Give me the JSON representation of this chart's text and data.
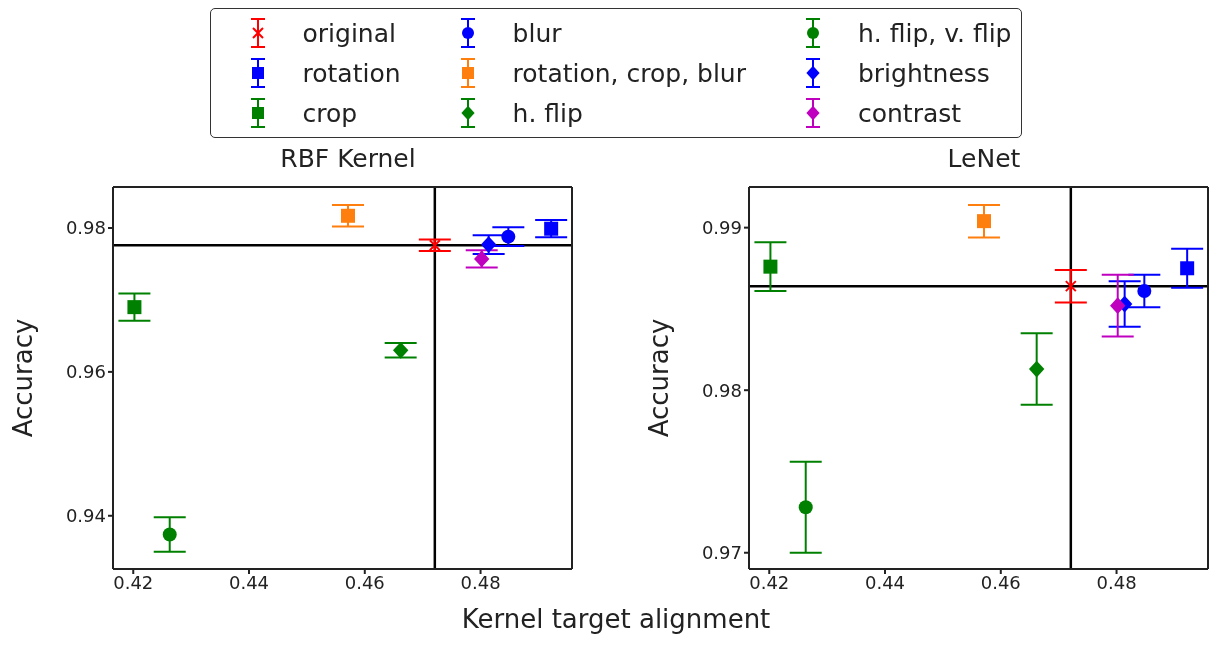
{
  "chart_data": [
    {
      "type": "scatter",
      "title": "RBF Kernel",
      "xlabel": "Kernel target alignment",
      "ylabel": "Accuracy",
      "legend": "top",
      "xlim": [
        0.4165,
        0.4958
      ],
      "xticks": [
        0.42,
        0.44,
        0.46,
        0.48
      ],
      "ylim": [
        0.9326,
        0.9857
      ],
      "yticks": [
        0.94,
        0.96,
        0.98
      ],
      "ref_lines": [
        {
          "axis": "x",
          "value": 0.4721,
          "color": "#000000"
        },
        {
          "axis": "y",
          "value": 0.9776,
          "color": "#000000"
        }
      ],
      "series": [
        {
          "name": "original",
          "color": "#ff0000",
          "marker": "cross",
          "x": [
            0.4721
          ],
          "values": [
            0.9776
          ],
          "errors": [
            0.0008
          ]
        },
        {
          "name": "rotation",
          "color": "#0000ff",
          "marker": "square",
          "x": [
            0.4922
          ],
          "values": [
            0.9799
          ],
          "errors": [
            0.0012
          ]
        },
        {
          "name": "crop",
          "color": "#008000",
          "marker": "square",
          "x": [
            0.4202
          ],
          "values": [
            0.969
          ],
          "errors": [
            0.0019
          ]
        },
        {
          "name": "blur",
          "color": "#0000ff",
          "marker": "circle",
          "x": [
            0.4848
          ],
          "values": [
            0.9788
          ],
          "errors": [
            0.0013
          ]
        },
        {
          "name": "rotation, crop, blur",
          "color": "#ff7f0e",
          "marker": "square",
          "x": [
            0.4571
          ],
          "values": [
            0.9817
          ],
          "errors": [
            0.0015
          ]
        },
        {
          "name": "h. flip",
          "color": "#008000",
          "marker": "diamond",
          "x": [
            0.4662
          ],
          "values": [
            0.963
          ],
          "errors": [
            0.001
          ]
        },
        {
          "name": "h. flip, v. flip",
          "color": "#008000",
          "marker": "circle",
          "x": [
            0.4263
          ],
          "values": [
            0.9374
          ],
          "errors": [
            0.0024
          ]
        },
        {
          "name": "brightness",
          "color": "#0000ff",
          "marker": "diamond",
          "x": [
            0.4814
          ],
          "values": [
            0.9777
          ],
          "errors": [
            0.0013
          ]
        },
        {
          "name": "contrast",
          "color": "#bf00bf",
          "marker": "diamond",
          "x": [
            0.4802
          ],
          "values": [
            0.9757
          ],
          "errors": [
            0.0012
          ]
        }
      ]
    },
    {
      "type": "scatter",
      "title": "LeNet",
      "ylabel": "Accuracy",
      "xlim": [
        0.4165,
        0.4958
      ],
      "xticks": [
        0.42,
        0.44,
        0.46,
        0.48
      ],
      "ylim": [
        0.969,
        0.9925
      ],
      "yticks": [
        0.97,
        0.98,
        0.99
      ],
      "ref_lines": [
        {
          "axis": "x",
          "value": 0.4721,
          "color": "#000000"
        },
        {
          "axis": "y",
          "value": 0.9864,
          "color": "#000000"
        }
      ],
      "series": [
        {
          "color": "#ff0000",
          "marker": "cross",
          "x": [
            0.4721
          ],
          "values": [
            0.9864
          ],
          "errors": [
            0.001
          ]
        },
        {
          "color": "#0000ff",
          "marker": "square",
          "x": [
            0.4922
          ],
          "values": [
            0.9875
          ],
          "errors": [
            0.0012
          ]
        },
        {
          "color": "#008000",
          "marker": "square",
          "x": [
            0.4202
          ],
          "values": [
            0.9876
          ],
          "errors": [
            0.0015
          ]
        },
        {
          "color": "#0000ff",
          "marker": "circle",
          "x": [
            0.4848
          ],
          "values": [
            0.9861
          ],
          "errors": [
            0.001
          ]
        },
        {
          "color": "#ff7f0e",
          "marker": "square",
          "x": [
            0.4571
          ],
          "values": [
            0.9904
          ],
          "errors": [
            0.001
          ]
        },
        {
          "color": "#008000",
          "marker": "diamond",
          "x": [
            0.4662
          ],
          "values": [
            0.9813
          ],
          "errors": [
            0.0022
          ]
        },
        {
          "color": "#008000",
          "marker": "circle",
          "x": [
            0.4263
          ],
          "values": [
            0.9728
          ],
          "errors": [
            0.0028
          ]
        },
        {
          "color": "#0000ff",
          "marker": "diamond",
          "x": [
            0.4814
          ],
          "values": [
            0.9853
          ],
          "errors": [
            0.0014
          ]
        },
        {
          "color": "#bf00bf",
          "marker": "diamond",
          "x": [
            0.4802
          ],
          "values": [
            0.9852
          ],
          "errors": [
            0.0019
          ]
        }
      ]
    }
  ]
}
